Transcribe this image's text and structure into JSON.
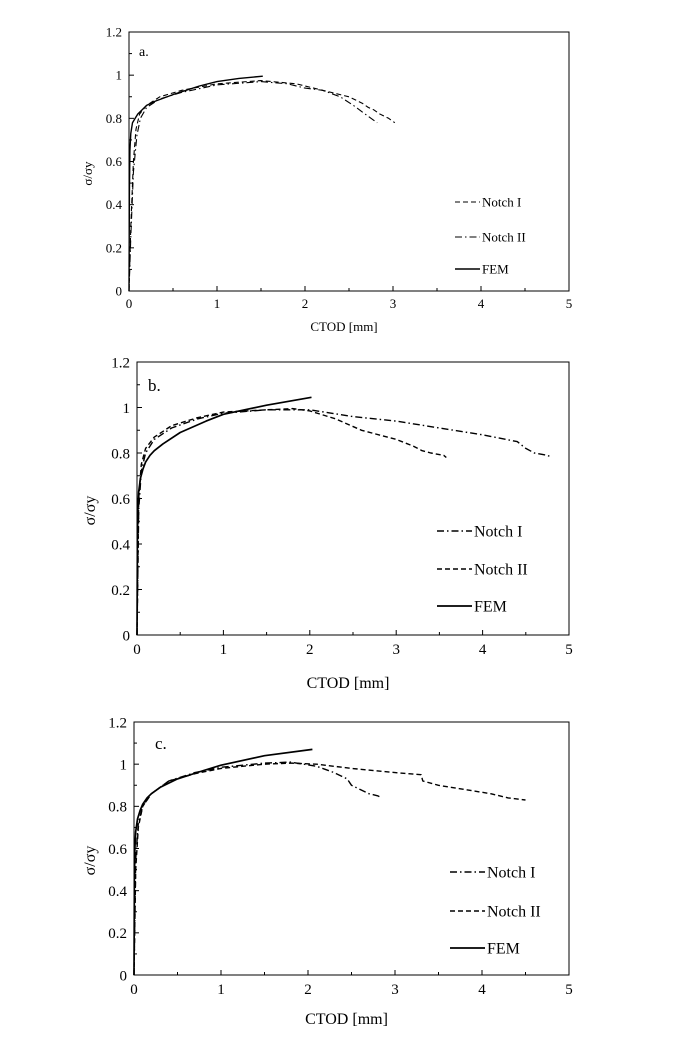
{
  "chart_data": [
    {
      "type": "line",
      "panel_label": "a.",
      "xlabel": "CTOD [mm]",
      "ylabel": "σ/σy",
      "xlim": [
        0,
        5
      ],
      "ylim": [
        0,
        1.2
      ],
      "xticks": [
        "0",
        "1",
        "2",
        "3",
        "4",
        "5"
      ],
      "yticks": [
        "0",
        "0.2",
        "0.4",
        "0.6",
        "0.8",
        "1",
        "1.2"
      ],
      "grid": false,
      "legend_position": "right",
      "series": [
        {
          "name": "Notch I",
          "style": "dashed",
          "x": [
            0,
            0.02,
            0.05,
            0.08,
            0.12,
            0.2,
            0.35,
            0.6,
            1.0,
            1.5,
            1.9,
            2.2,
            2.5,
            2.65,
            2.72,
            2.78,
            2.85,
            2.95,
            3.02
          ],
          "y": [
            0,
            0.3,
            0.6,
            0.75,
            0.82,
            0.86,
            0.9,
            0.93,
            0.96,
            0.975,
            0.96,
            0.93,
            0.9,
            0.87,
            0.85,
            0.84,
            0.82,
            0.8,
            0.78
          ]
        },
        {
          "name": "Notch II",
          "style": "dashdot",
          "x": [
            0,
            0.02,
            0.05,
            0.09,
            0.13,
            0.2,
            0.35,
            0.6,
            1.0,
            1.5,
            1.8,
            2.0,
            2.2,
            2.4,
            2.55,
            2.65,
            2.75,
            2.82
          ],
          "y": [
            0,
            0.25,
            0.55,
            0.72,
            0.8,
            0.85,
            0.89,
            0.92,
            0.955,
            0.97,
            0.96,
            0.94,
            0.93,
            0.9,
            0.86,
            0.83,
            0.8,
            0.78
          ]
        },
        {
          "name": "FEM",
          "style": "solid",
          "x": [
            0,
            0.005,
            0.01,
            0.02,
            0.04,
            0.07,
            0.1,
            0.15,
            0.2,
            0.3,
            0.5,
            0.8,
            1.0,
            1.25,
            1.52
          ],
          "y": [
            0,
            0.45,
            0.65,
            0.73,
            0.78,
            0.8,
            0.82,
            0.84,
            0.86,
            0.88,
            0.91,
            0.95,
            0.97,
            0.985,
            0.995
          ]
        }
      ]
    },
    {
      "type": "line",
      "panel_label": "b.",
      "xlabel": "CTOD [mm]",
      "ylabel": "σ/σy",
      "xlim": [
        0,
        5
      ],
      "ylim": [
        0,
        1.2
      ],
      "xticks": [
        "0",
        "1",
        "2",
        "3",
        "4",
        "5"
      ],
      "yticks": [
        "0",
        "0.2",
        "0.4",
        "0.6",
        "0.8",
        "1",
        "1.2"
      ],
      "grid": false,
      "legend_position": "right",
      "series": [
        {
          "name": "Notch I",
          "style": "dashdot",
          "x": [
            0,
            0.02,
            0.05,
            0.1,
            0.2,
            0.4,
            0.7,
            1.0,
            1.5,
            2.0,
            2.5,
            3.0,
            3.5,
            4.0,
            4.4,
            4.5,
            4.6,
            4.75,
            4.8
          ],
          "y": [
            0,
            0.55,
            0.72,
            0.8,
            0.86,
            0.91,
            0.95,
            0.975,
            0.99,
            0.99,
            0.96,
            0.94,
            0.91,
            0.88,
            0.85,
            0.82,
            0.8,
            0.79,
            0.78
          ]
        },
        {
          "name": "Notch II",
          "style": "dashed",
          "x": [
            0,
            0.02,
            0.05,
            0.1,
            0.2,
            0.4,
            0.7,
            1.0,
            1.5,
            1.8,
            2.0,
            2.3,
            2.6,
            3.0,
            3.2,
            3.3,
            3.4,
            3.55,
            3.58
          ],
          "y": [
            0,
            0.6,
            0.75,
            0.82,
            0.87,
            0.92,
            0.955,
            0.98,
            0.99,
            0.995,
            0.985,
            0.95,
            0.9,
            0.86,
            0.83,
            0.81,
            0.8,
            0.79,
            0.78
          ]
        },
        {
          "name": "FEM",
          "style": "solid",
          "x": [
            0,
            0.005,
            0.01,
            0.02,
            0.04,
            0.07,
            0.1,
            0.15,
            0.2,
            0.3,
            0.5,
            0.8,
            1.0,
            1.5,
            2.02
          ],
          "y": [
            0,
            0.4,
            0.55,
            0.63,
            0.69,
            0.73,
            0.76,
            0.79,
            0.81,
            0.84,
            0.89,
            0.94,
            0.97,
            1.01,
            1.045
          ]
        }
      ]
    },
    {
      "type": "line",
      "panel_label": "c.",
      "xlabel": "CTOD [mm]",
      "ylabel": "σ/σy",
      "xlim": [
        0,
        5
      ],
      "ylim": [
        0,
        1.2
      ],
      "xticks": [
        "0",
        "1",
        "2",
        "3",
        "4",
        "5"
      ],
      "yticks": [
        "0",
        "0.2",
        "0.4",
        "0.6",
        "0.8",
        "1",
        "1.2"
      ],
      "grid": false,
      "legend_position": "right",
      "series": [
        {
          "name": "Notch I",
          "style": "dashdot",
          "x": [
            0,
            0.02,
            0.05,
            0.1,
            0.2,
            0.4,
            0.7,
            1.0,
            1.5,
            1.8,
            2.1,
            2.3,
            2.45,
            2.5,
            2.6,
            2.7,
            2.8,
            2.85
          ],
          "y": [
            0,
            0.55,
            0.72,
            0.8,
            0.86,
            0.92,
            0.96,
            0.985,
            1.005,
            1.01,
            0.99,
            0.96,
            0.93,
            0.9,
            0.88,
            0.86,
            0.85,
            0.84
          ]
        },
        {
          "name": "Notch II",
          "style": "dashed",
          "x": [
            0,
            0.02,
            0.05,
            0.1,
            0.2,
            0.4,
            0.7,
            1.0,
            1.5,
            1.8,
            2.1,
            2.5,
            3.0,
            3.3,
            3.32,
            3.5,
            3.8,
            4.1,
            4.3,
            4.5
          ],
          "y": [
            0,
            0.5,
            0.7,
            0.8,
            0.86,
            0.92,
            0.955,
            0.98,
            1.0,
            1.005,
            1.0,
            0.98,
            0.96,
            0.95,
            0.92,
            0.9,
            0.88,
            0.86,
            0.84,
            0.83
          ]
        },
        {
          "name": "FEM",
          "style": "solid",
          "x": [
            0,
            0.005,
            0.01,
            0.02,
            0.04,
            0.07,
            0.1,
            0.15,
            0.2,
            0.3,
            0.5,
            0.8,
            1.0,
            1.5,
            2.05
          ],
          "y": [
            0,
            0.45,
            0.6,
            0.68,
            0.74,
            0.78,
            0.81,
            0.84,
            0.86,
            0.89,
            0.93,
            0.97,
            0.995,
            1.04,
            1.07
          ]
        }
      ]
    }
  ]
}
